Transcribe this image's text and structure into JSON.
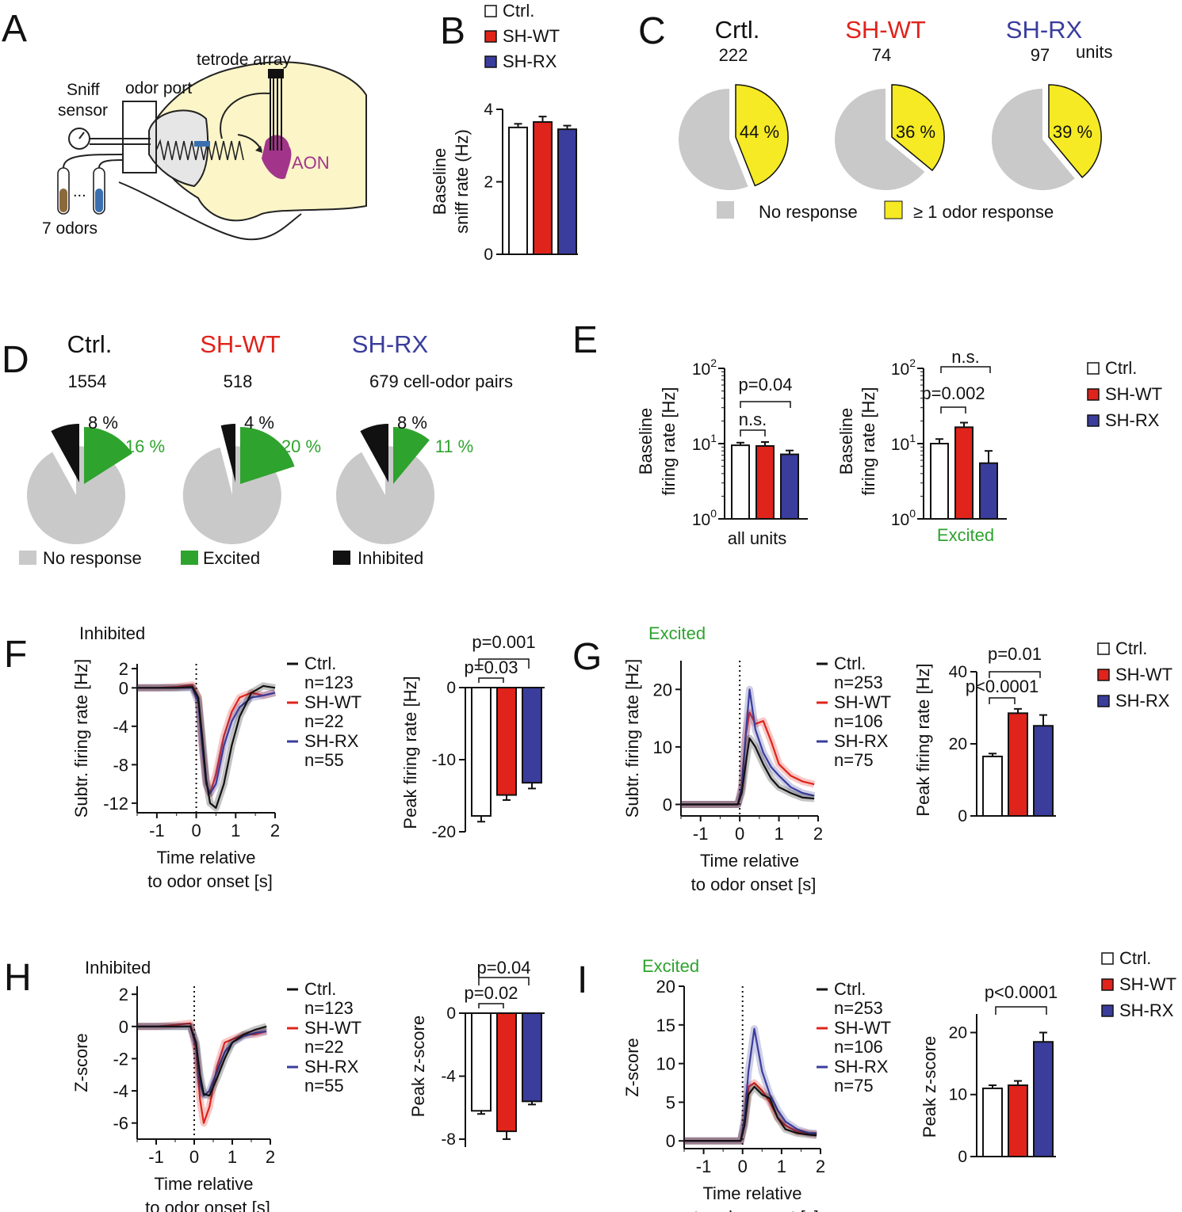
{
  "colors": {
    "ctrl": "#ffffff",
    "shwt": "#e0231b",
    "shrx": "#3a3d9c",
    "ctrl_line": "#111111",
    "shwt_text": "#e0231b",
    "shrx_text": "#3a3d9c",
    "gray": "#c9c9c9",
    "yellow": "#f5ea23",
    "green": "#2ea32e",
    "black": "#111111",
    "aon": "#a2358a",
    "brain": "#fbf5c8"
  },
  "panels": {
    "A": "A",
    "B": "B",
    "C": "C",
    "D": "D",
    "E": "E",
    "F": "F",
    "G": "G",
    "H": "H",
    "I": "I"
  },
  "schematic": {
    "tetrode": "tetrode array",
    "sniff1": "Sniff",
    "sniff2": "sensor",
    "odor_port": "odor port",
    "aon": "AON",
    "dots": "...",
    "odors": "7 odors"
  },
  "groups": {
    "ctrl": "Ctrl.",
    "crtl": "Crtl.",
    "shwt": "SH-WT",
    "shrx": "SH-RX"
  },
  "chart_data": [
    {
      "id": "B",
      "type": "bar",
      "categories": [
        "Ctrl.",
        "SH-WT",
        "SH-RX"
      ],
      "values": [
        3.5,
        3.65,
        3.45
      ],
      "errors": [
        0.1,
        0.15,
        0.1
      ],
      "ylabel1": "Baseline",
      "ylabel2": "sniff rate (Hz)",
      "ylim": [
        0,
        4
      ],
      "yticks": [
        "0",
        "2",
        "4"
      ],
      "legend": [
        "Ctrl.",
        "SH-WT",
        "SH-RX"
      ]
    },
    {
      "id": "C",
      "type": "pie",
      "groups": [
        {
          "name": "Crtl.",
          "count": "222",
          "response_pct": 44,
          "label": "44 %"
        },
        {
          "name": "SH-WT",
          "count": "74",
          "response_pct": 36,
          "label": "36 %"
        },
        {
          "name": "SH-RX",
          "count": "97",
          "response_pct": 39,
          "label": "39 %"
        }
      ],
      "unit": "units",
      "legend": [
        "No response",
        "≥ 1 odor response"
      ]
    },
    {
      "id": "D",
      "type": "pie",
      "groups": [
        {
          "name": "Ctrl.",
          "count": "1554",
          "inhibited_pct": 8,
          "excited_pct": 16,
          "inh_label": "8 %",
          "exc_label": "16 %"
        },
        {
          "name": "SH-WT",
          "count": "518",
          "inhibited_pct": 4,
          "excited_pct": 20,
          "inh_label": "4 %",
          "exc_label": "20 %"
        },
        {
          "name": "SH-RX",
          "count": "679 cell-odor pairs",
          "inhibited_pct": 8,
          "excited_pct": 11,
          "inh_label": "8 %",
          "exc_label": "11 %"
        }
      ],
      "legend": [
        "No response",
        "Excited",
        "Inhibited"
      ]
    },
    {
      "id": "E1",
      "type": "bar",
      "scale": "log",
      "categories": [
        "Ctrl.",
        "SH-WT",
        "SH-RX"
      ],
      "values": [
        9.5,
        9.3,
        7.2
      ],
      "errors": [
        0.8,
        1.2,
        0.9
      ],
      "ylabel1": "Baseline",
      "ylabel2": "firing rate [Hz]",
      "ylim": [
        1,
        100
      ],
      "xlabel": "all units",
      "stats": [
        "p=0.04",
        "n.s."
      ]
    },
    {
      "id": "E2",
      "type": "bar",
      "scale": "log",
      "categories": [
        "Ctrl.",
        "SH-WT",
        "SH-RX"
      ],
      "values": [
        10,
        16.5,
        5.5
      ],
      "errors": [
        1.5,
        2.5,
        2.5
      ],
      "ylabel1": "Baseline",
      "ylabel2": "firing rate [Hz]",
      "ylim": [
        1,
        100
      ],
      "xlabel": "Excited",
      "stats": [
        "n.s.",
        "p=0.002"
      ],
      "legend": [
        "Ctrl.",
        "SH-WT",
        "SH-RX"
      ]
    },
    {
      "id": "F1",
      "type": "line",
      "title": "Inhibited",
      "xlim": [
        -1.5,
        2
      ],
      "ylim": [
        -13,
        2.5
      ],
      "xticks": [
        "-1",
        "0",
        "1",
        "2"
      ],
      "yticks": [
        "2",
        "0",
        "-4",
        "-8",
        "-12"
      ],
      "ylabel": "Subtr. firing rate [Hz]",
      "xlabel1": "Time relative",
      "xlabel2": "to odor onset [s]",
      "series": [
        {
          "name": "Ctrl.",
          "n": "n=123",
          "x": [
            -1.5,
            -1,
            -0.5,
            -0.1,
            0.05,
            0.15,
            0.25,
            0.35,
            0.5,
            0.7,
            0.9,
            1.1,
            1.4,
            1.7,
            2
          ],
          "y": [
            0,
            0,
            0,
            0.1,
            -1,
            -5,
            -9.5,
            -12,
            -12.5,
            -10,
            -6,
            -3,
            -0.5,
            0.2,
            0
          ]
        },
        {
          "name": "SH-WT",
          "n": "n=22",
          "x": [
            -1.5,
            -1,
            -0.5,
            -0.1,
            0.05,
            0.15,
            0.25,
            0.35,
            0.5,
            0.7,
            0.9,
            1.1,
            1.4,
            1.7,
            2
          ],
          "y": [
            0,
            0,
            0.1,
            0.3,
            -1,
            -6,
            -10,
            -11,
            -9,
            -5,
            -2.5,
            -1,
            -0.5,
            -0.8,
            -0.5
          ]
        },
        {
          "name": "SH-RX",
          "n": "n=55",
          "x": [
            -1.5,
            -1,
            -0.5,
            -0.1,
            0.05,
            0.15,
            0.25,
            0.35,
            0.5,
            0.7,
            0.9,
            1.1,
            1.4,
            1.7,
            2
          ],
          "y": [
            0,
            0,
            0,
            0,
            -1.5,
            -6,
            -10,
            -11,
            -10,
            -6,
            -3.5,
            -2,
            -1,
            -0.8,
            -0.5
          ]
        }
      ]
    },
    {
      "id": "F2",
      "type": "bar",
      "categories": [
        "Ctrl.",
        "SH-WT",
        "SH-RX"
      ],
      "values": [
        -17.8,
        -14.9,
        -13.2
      ],
      "errors": [
        0.8,
        0.7,
        0.8
      ],
      "ylabel": "Peak firing rate [Hz]",
      "ylim": [
        -20,
        0
      ],
      "yticks": [
        "0",
        "-10",
        "-20"
      ],
      "stats": [
        "p=0.001",
        "p=0.03"
      ]
    },
    {
      "id": "G1",
      "type": "line",
      "title": "Excited",
      "xlim": [
        -1.5,
        2
      ],
      "ylim": [
        -2,
        25
      ],
      "xticks": [
        "-1",
        "0",
        "1",
        "2"
      ],
      "yticks": [
        "0",
        "10",
        "20"
      ],
      "ylabel": "Subtr. firing rate [Hz]",
      "xlabel1": "Time relative",
      "xlabel2": "to odor onset [s]",
      "series": [
        {
          "name": "Ctrl.",
          "n": "n=253",
          "x": [
            -1.5,
            -1,
            -0.5,
            -0.05,
            0.05,
            0.15,
            0.25,
            0.4,
            0.6,
            0.8,
            1,
            1.3,
            1.6,
            1.9
          ],
          "y": [
            0,
            0,
            0,
            0,
            2,
            7,
            11.5,
            10,
            7,
            4.5,
            3,
            2,
            1.2,
            1
          ]
        },
        {
          "name": "SH-WT",
          "n": "n=106",
          "x": [
            -1.5,
            -1,
            -0.5,
            -0.05,
            0.05,
            0.15,
            0.25,
            0.4,
            0.6,
            0.8,
            1,
            1.3,
            1.6,
            1.9
          ],
          "y": [
            0,
            0,
            0,
            0,
            3,
            12,
            16,
            14,
            14.5,
            11,
            7,
            5,
            4,
            3.5
          ]
        },
        {
          "name": "SH-RX",
          "n": "n=75",
          "x": [
            -1.5,
            -1,
            -0.5,
            -0.05,
            0.05,
            0.15,
            0.25,
            0.4,
            0.6,
            0.8,
            1,
            1.3,
            1.6,
            1.9
          ],
          "y": [
            0,
            0,
            0,
            0,
            3,
            12,
            20,
            13,
            9,
            6.5,
            5,
            3,
            2,
            1.5
          ]
        }
      ]
    },
    {
      "id": "G2",
      "type": "bar",
      "categories": [
        "Ctrl.",
        "SH-WT",
        "SH-RX"
      ],
      "values": [
        16.5,
        28.5,
        25
      ],
      "errors": [
        0.8,
        1.2,
        3
      ],
      "ylabel": "Peak firing rate [Hz]",
      "ylim": [
        0,
        40
      ],
      "yticks": [
        "0",
        "20",
        "40"
      ],
      "stats": [
        "p=0.01",
        "p<0.0001"
      ],
      "legend": [
        "Ctrl.",
        "SH-WT",
        "SH-RX"
      ]
    },
    {
      "id": "H1",
      "type": "line",
      "title": "Inhibited",
      "xlim": [
        -1.5,
        2
      ],
      "ylim": [
        -7,
        2.5
      ],
      "xticks": [
        "-1",
        "0",
        "1",
        "2"
      ],
      "yticks": [
        "2",
        "0",
        "-2",
        "-4",
        "-6"
      ],
      "ylabel": "Z-score",
      "xlabel1": "Time relative",
      "xlabel2": "to odor onset [s]",
      "series": [
        {
          "name": "Ctrl.",
          "n": "n=123",
          "x": [
            -1.5,
            -1,
            -0.5,
            -0.1,
            0.05,
            0.15,
            0.25,
            0.4,
            0.6,
            0.8,
            1,
            1.3,
            1.6,
            1.9
          ],
          "y": [
            0,
            0,
            0,
            0,
            -1,
            -3,
            -4.2,
            -4.3,
            -3.2,
            -2,
            -1,
            -0.5,
            -0.2,
            0
          ]
        },
        {
          "name": "SH-WT",
          "n": "n=22",
          "x": [
            -1.5,
            -1,
            -0.5,
            -0.1,
            0.05,
            0.15,
            0.25,
            0.4,
            0.6,
            0.8,
            1,
            1.3,
            1.6,
            1.9
          ],
          "y": [
            0,
            0,
            0.1,
            0.2,
            -1.5,
            -4.5,
            -6,
            -5,
            -2.5,
            -1,
            -0.8,
            -0.5,
            -0.5,
            -0.3
          ]
        },
        {
          "name": "SH-RX",
          "n": "n=55",
          "x": [
            -1.5,
            -1,
            -0.5,
            -0.1,
            0.05,
            0.15,
            0.25,
            0.4,
            0.6,
            0.8,
            1,
            1.3,
            1.6,
            1.9
          ],
          "y": [
            0,
            0,
            0,
            0,
            -1.2,
            -3.5,
            -4.3,
            -4,
            -2.8,
            -1.6,
            -1,
            -0.6,
            -0.4,
            -0.3
          ]
        }
      ]
    },
    {
      "id": "H2",
      "type": "bar",
      "categories": [
        "Ctrl.",
        "SH-WT",
        "SH-RX"
      ],
      "values": [
        -6.2,
        -7.5,
        -5.6
      ],
      "errors": [
        0.2,
        0.5,
        0.2
      ],
      "ylabel": "Peak z-score",
      "ylim": [
        -8.5,
        0
      ],
      "yticks": [
        "0",
        "-4",
        "-8"
      ],
      "stats": [
        "p=0.04",
        "p=0.02"
      ]
    },
    {
      "id": "I1",
      "type": "line",
      "title": "Excited",
      "xlim": [
        -1.5,
        2
      ],
      "ylim": [
        -1,
        20
      ],
      "xticks": [
        "-1",
        "0",
        "1",
        "2"
      ],
      "yticks": [
        "0",
        "5",
        "10",
        "15",
        "20"
      ],
      "ylabel": "Z-score",
      "xlabel1": "Time relative",
      "xlabel2": "to odor onset [s]",
      "series": [
        {
          "name": "Ctrl.",
          "n": "n=253",
          "x": [
            -1.5,
            -1,
            -0.5,
            -0.05,
            0.05,
            0.15,
            0.3,
            0.5,
            0.7,
            0.9,
            1.1,
            1.4,
            1.7,
            1.9
          ],
          "y": [
            0,
            0,
            0,
            0,
            2,
            6,
            7,
            6,
            5.5,
            3,
            1.5,
            1,
            0.8,
            0.7
          ]
        },
        {
          "name": "SH-WT",
          "n": "n=106",
          "x": [
            -1.5,
            -1,
            -0.5,
            -0.05,
            0.05,
            0.15,
            0.3,
            0.5,
            0.7,
            0.9,
            1.1,
            1.4,
            1.7,
            1.9
          ],
          "y": [
            0,
            0,
            0,
            0,
            2.5,
            7,
            7.5,
            6.5,
            5,
            3,
            2,
            1.2,
            1,
            0.8
          ]
        },
        {
          "name": "SH-RX",
          "n": "n=75",
          "x": [
            -1.5,
            -1,
            -0.5,
            -0.05,
            0.05,
            0.15,
            0.3,
            0.5,
            0.7,
            0.9,
            1.1,
            1.4,
            1.7,
            1.9
          ],
          "y": [
            0,
            0,
            0,
            0,
            3,
            9,
            14.5,
            9,
            6,
            4,
            2.5,
            1.5,
            1,
            1
          ]
        }
      ]
    },
    {
      "id": "I2",
      "type": "bar",
      "categories": [
        "Ctrl.",
        "SH-WT",
        "SH-RX"
      ],
      "values": [
        11,
        11.5,
        18.5
      ],
      "errors": [
        0.5,
        0.7,
        1.5
      ],
      "ylabel": "Peak z-score",
      "ylim": [
        0,
        23
      ],
      "yticks": [
        "0",
        "10",
        "20"
      ],
      "stats": [
        "p<0.0001"
      ],
      "legend": [
        "Ctrl.",
        "SH-WT",
        "SH-RX"
      ]
    }
  ]
}
